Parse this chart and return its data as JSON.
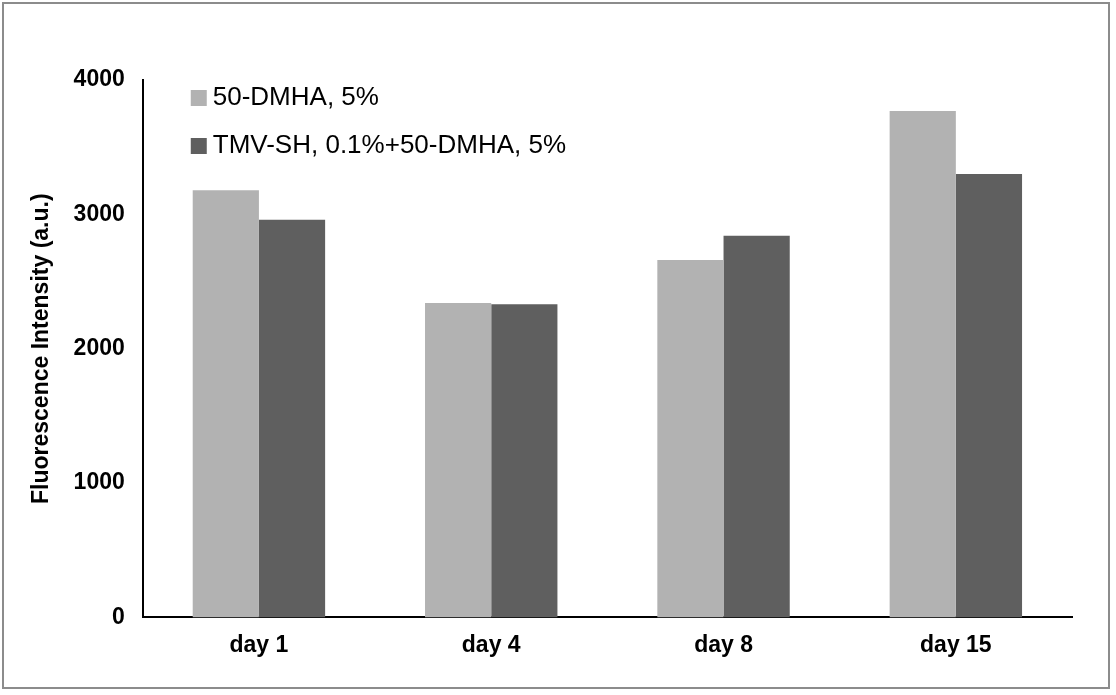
{
  "chart_data": {
    "type": "bar",
    "ylabel": "Fluorescence Intensity (a.u.)",
    "categories": [
      "day 1",
      "day 4",
      "day 8",
      "day 15"
    ],
    "series": [
      {
        "name": "50-DMHA, 5%",
        "color": "#b2b2b2",
        "values": [
          3180,
          2340,
          2660,
          3770
        ]
      },
      {
        "name": "TMV-SH, 0.1%+50-DMHA, 5%",
        "color": "#5f5f5f",
        "values": [
          2960,
          2330,
          2840,
          3300
        ]
      }
    ],
    "ylim": [
      0,
      4000
    ],
    "yticks": [
      0,
      1000,
      2000,
      3000,
      4000
    ],
    "grid": false,
    "legend": "top left"
  }
}
